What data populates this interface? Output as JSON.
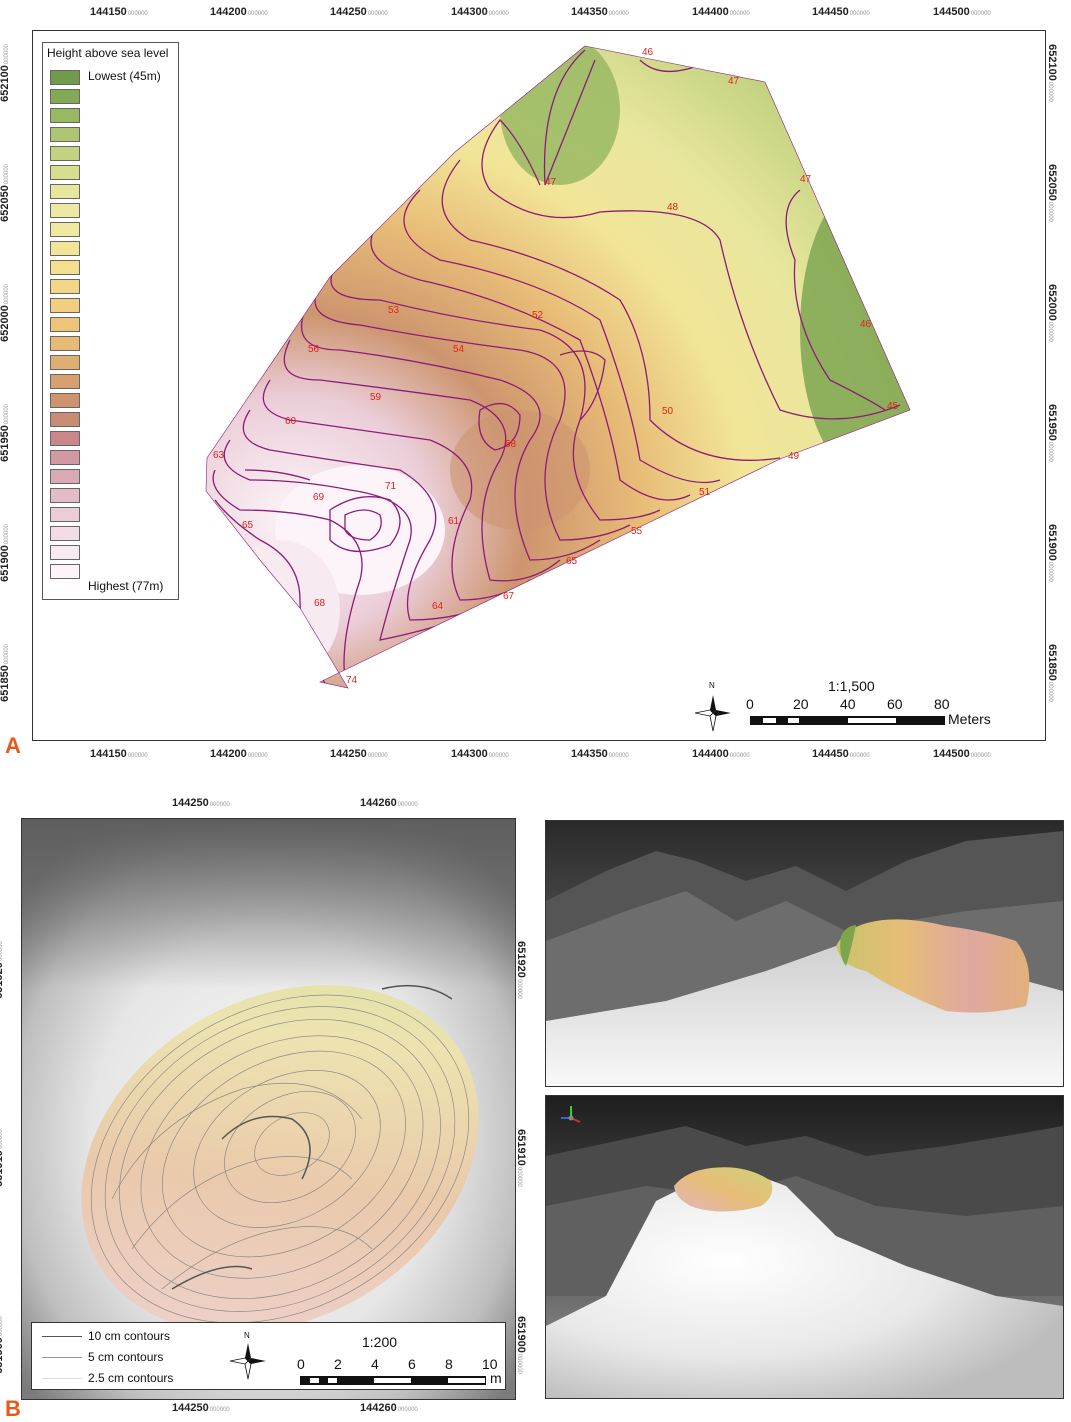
{
  "panel_a": {
    "letter": "A",
    "x_ticks": [
      "144150",
      "144200",
      "144250",
      "144300",
      "144350",
      "144400",
      "144450",
      "144500"
    ],
    "y_ticks": [
      "652100",
      "652050",
      "652000",
      "651950",
      "651900",
      "651850"
    ],
    "tick_suffix": "000000",
    "legend": {
      "title": "Height above sea level",
      "lowest": "Lowest (45m)",
      "highest": "Highest (77m)",
      "colors": [
        "#6f9b4b",
        "#84a955",
        "#99b863",
        "#adc571",
        "#c2d280",
        "#d7df8f",
        "#e8e69e",
        "#ede9a4",
        "#f0e9a1",
        "#f2e597",
        "#f3df8e",
        "#f2d886",
        "#f0cf80",
        "#edc57a",
        "#e7ba76",
        "#dfae72",
        "#d6a16f",
        "#cd956f",
        "#c68c74",
        "#c9878a",
        "#d19aa2",
        "#d9aab4",
        "#e2bcc7",
        "#ebcdd8",
        "#f2dde7",
        "#f8eaf1",
        "#fcf4f8"
      ]
    },
    "contour_labels": [
      "46",
      "47",
      "47",
      "47",
      "48",
      "52",
      "53",
      "54",
      "56",
      "59",
      "60",
      "63",
      "71",
      "69",
      "61",
      "58",
      "50",
      "51",
      "49",
      "55",
      "65",
      "64",
      "67",
      "46",
      "45",
      "68",
      "65",
      "74"
    ],
    "scale": {
      "ratio": "1:1,500",
      "numbers": [
        "0",
        "20",
        "40",
        "60",
        "80"
      ],
      "unit": "Meters"
    },
    "north": "N"
  },
  "panel_b": {
    "letter": "B",
    "x_ticks": [
      "144250",
      "144260"
    ],
    "y_ticks": [
      "651920",
      "651910",
      "651900"
    ],
    "tick_suffix": "000000",
    "legend": {
      "items": [
        "10 cm contours",
        "5 cm contours",
        "2.5 cm contours"
      ]
    },
    "scale": {
      "ratio": "1:200",
      "numbers": [
        "0",
        "2",
        "4",
        "6",
        "8",
        "10"
      ],
      "unit": "m"
    },
    "north": "N"
  }
}
